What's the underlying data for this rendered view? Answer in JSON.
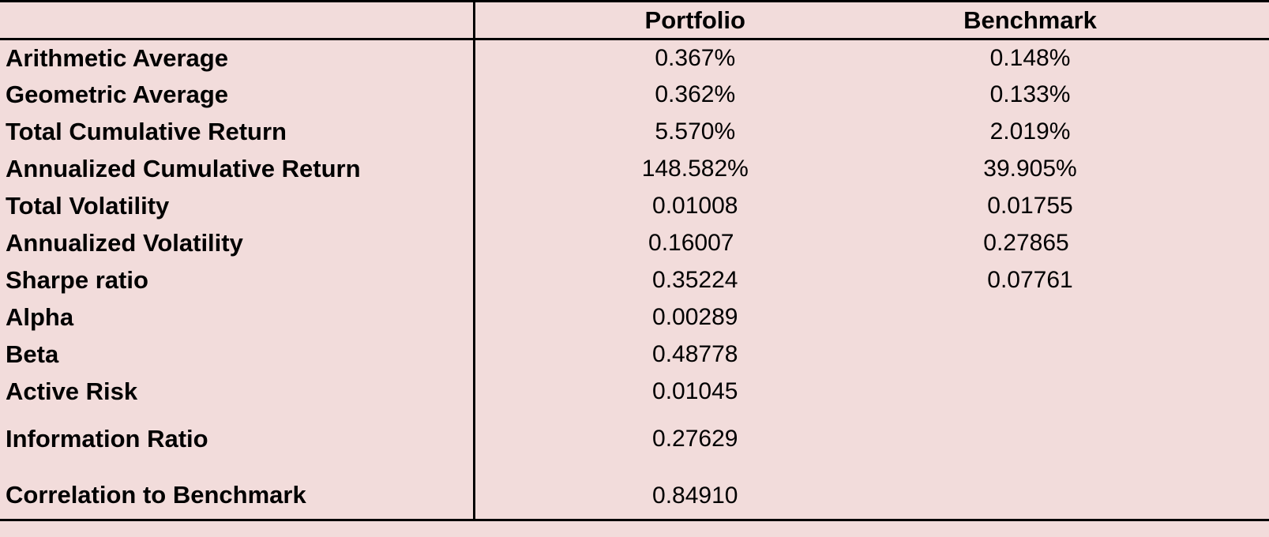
{
  "table": {
    "columns": [
      "",
      "Portfolio",
      "Benchmark"
    ],
    "rows": [
      {
        "label": "Arithmetic Average",
        "portfolio": "0.367%",
        "benchmark": "0.148%"
      },
      {
        "label": "Geometric Average",
        "portfolio": "0.362%",
        "benchmark": "0.133%"
      },
      {
        "label": "Total Cumulative Return",
        "portfolio": "5.570%",
        "benchmark": "2.019%"
      },
      {
        "label": "Annualized Cumulative Return",
        "portfolio": "148.582%",
        "benchmark": "39.905%"
      },
      {
        "label": "Total Volatility",
        "portfolio": "0.01008",
        "benchmark": "0.01755"
      },
      {
        "label": "Annualized Volatility",
        "portfolio": "0.16007",
        "benchmark": "0.27865"
      },
      {
        "label": "Sharpe ratio",
        "portfolio": "0.35224",
        "benchmark": "0.07761"
      },
      {
        "label": "Alpha",
        "portfolio": "0.00289",
        "benchmark": ""
      },
      {
        "label": "Beta",
        "portfolio": "0.48778",
        "benchmark": ""
      },
      {
        "label": "Active Risk",
        "portfolio": "0.01045",
        "benchmark": ""
      },
      {
        "label": "Information Ratio",
        "portfolio": "0.27629",
        "benchmark": ""
      },
      {
        "label": "Correlation to Benchmark",
        "portfolio": "0.84910",
        "benchmark": ""
      }
    ]
  },
  "colors": {
    "background": "#f2dcdb",
    "text": "#000000",
    "border": "#000000"
  }
}
